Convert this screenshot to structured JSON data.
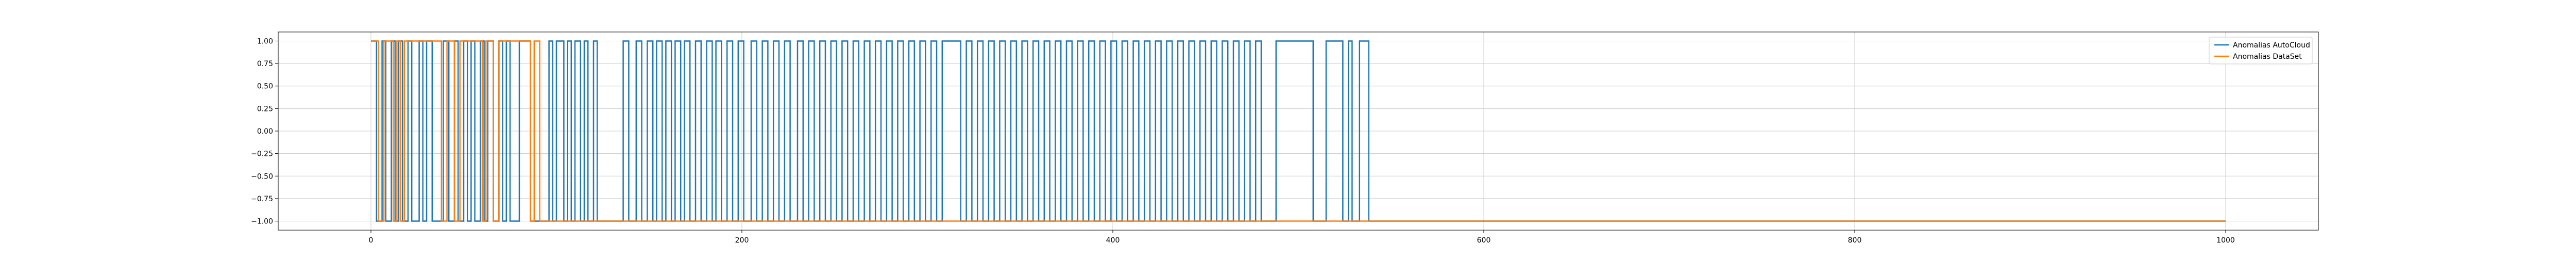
{
  "chart_data": {
    "type": "line",
    "title": "",
    "xlabel": "",
    "ylabel": "",
    "xlim": [
      -50,
      1050
    ],
    "ylim": [
      -1.1,
      1.1
    ],
    "xticks": [
      0,
      200,
      400,
      600,
      800,
      1000
    ],
    "yticks": [
      -1.0,
      -0.75,
      -0.5,
      -0.25,
      0.0,
      0.25,
      0.5,
      0.75,
      1.0
    ],
    "xtick_labels": [
      "0",
      "200",
      "400",
      "600",
      "800",
      "1000"
    ],
    "ytick_labels": [
      "−1.00",
      "−0.75",
      "−0.50",
      "−0.25",
      "0.00",
      "0.25",
      "0.50",
      "0.75",
      "1.00"
    ],
    "grid": true,
    "legend_position": "top-right",
    "series": [
      {
        "name": "Anomalias AutoCloud",
        "color": "#1f77b4",
        "x_start": 0,
        "x_end": 1000,
        "initial_value": 1,
        "final_value": -1,
        "segments": [
          [
            0,
            1
          ],
          [
            3,
            -1
          ],
          [
            6,
            1
          ],
          [
            8,
            -1
          ],
          [
            11,
            1
          ],
          [
            13,
            -1
          ],
          [
            15,
            1
          ],
          [
            17,
            -1
          ],
          [
            20,
            1
          ],
          [
            22,
            -1
          ],
          [
            26,
            1
          ],
          [
            28,
            -1
          ],
          [
            30,
            1
          ],
          [
            33,
            -1
          ],
          [
            39,
            1
          ],
          [
            42,
            -1
          ],
          [
            45,
            1
          ],
          [
            47,
            -1
          ],
          [
            50,
            1
          ],
          [
            52,
            -1
          ],
          [
            54,
            1
          ],
          [
            56,
            -1
          ],
          [
            59,
            1
          ],
          [
            61,
            -1
          ],
          [
            63,
            1
          ],
          [
            66,
            -1
          ],
          [
            69,
            1
          ],
          [
            71,
            -1
          ],
          [
            73,
            1
          ],
          [
            75,
            -1
          ],
          [
            80,
            1
          ],
          [
            86,
            -1
          ],
          [
            96,
            1
          ],
          [
            98,
            -1
          ],
          [
            100,
            1
          ],
          [
            104,
            -1
          ],
          [
            106,
            1
          ],
          [
            108,
            -1
          ],
          [
            110,
            1
          ],
          [
            113,
            -1
          ],
          [
            115,
            1
          ],
          [
            117,
            -1
          ],
          [
            120,
            1
          ],
          [
            122,
            -1
          ],
          [
            136,
            1
          ],
          [
            139,
            -1
          ],
          [
            143,
            1
          ],
          [
            146,
            -1
          ],
          [
            149,
            1
          ],
          [
            152,
            -1
          ],
          [
            154,
            1
          ],
          [
            157,
            -1
          ],
          [
            159,
            1
          ],
          [
            162,
            -1
          ],
          [
            164,
            1
          ],
          [
            167,
            -1
          ],
          [
            169,
            1
          ],
          [
            172,
            -1
          ],
          [
            175,
            1
          ],
          [
            178,
            -1
          ],
          [
            181,
            1
          ],
          [
            184,
            -1
          ],
          [
            186,
            1
          ],
          [
            189,
            -1
          ],
          [
            192,
            1
          ],
          [
            195,
            -1
          ],
          [
            198,
            1
          ],
          [
            201,
            -1
          ],
          [
            205,
            1
          ],
          [
            208,
            -1
          ],
          [
            211,
            1
          ],
          [
            214,
            -1
          ],
          [
            217,
            1
          ],
          [
            220,
            -1
          ],
          [
            223,
            1
          ],
          [
            226,
            -1
          ],
          [
            230,
            1
          ],
          [
            233,
            -1
          ],
          [
            236,
            1
          ],
          [
            239,
            -1
          ],
          [
            242,
            1
          ],
          [
            245,
            -1
          ],
          [
            248,
            1
          ],
          [
            251,
            -1
          ],
          [
            254,
            1
          ],
          [
            257,
            -1
          ],
          [
            260,
            1
          ],
          [
            263,
            -1
          ],
          [
            266,
            1
          ],
          [
            269,
            -1
          ],
          [
            272,
            1
          ],
          [
            275,
            -1
          ],
          [
            278,
            1
          ],
          [
            281,
            -1
          ],
          [
            284,
            1
          ],
          [
            287,
            -1
          ],
          [
            290,
            1
          ],
          [
            293,
            -1
          ],
          [
            296,
            1
          ],
          [
            299,
            -1
          ],
          [
            302,
            1
          ],
          [
            305,
            -1
          ],
          [
            308,
            1
          ],
          [
            318,
            -1
          ],
          [
            321,
            1
          ],
          [
            324,
            -1
          ],
          [
            327,
            1
          ],
          [
            330,
            -1
          ],
          [
            333,
            1
          ],
          [
            336,
            -1
          ],
          [
            339,
            1
          ],
          [
            342,
            -1
          ],
          [
            345,
            1
          ],
          [
            348,
            -1
          ],
          [
            351,
            1
          ],
          [
            354,
            -1
          ],
          [
            357,
            1
          ],
          [
            360,
            -1
          ],
          [
            363,
            1
          ],
          [
            366,
            -1
          ],
          [
            369,
            1
          ],
          [
            372,
            -1
          ],
          [
            375,
            1
          ],
          [
            378,
            -1
          ],
          [
            381,
            1
          ],
          [
            384,
            -1
          ],
          [
            387,
            1
          ],
          [
            390,
            -1
          ],
          [
            393,
            1
          ],
          [
            396,
            -1
          ],
          [
            399,
            1
          ],
          [
            402,
            -1
          ],
          [
            405,
            1
          ],
          [
            408,
            -1
          ],
          [
            411,
            1
          ],
          [
            414,
            -1
          ],
          [
            417,
            1
          ],
          [
            420,
            -1
          ],
          [
            423,
            1
          ],
          [
            426,
            -1
          ],
          [
            429,
            1
          ],
          [
            432,
            -1
          ],
          [
            435,
            1
          ],
          [
            438,
            -1
          ],
          [
            441,
            1
          ],
          [
            444,
            -1
          ],
          [
            447,
            1
          ],
          [
            450,
            -1
          ],
          [
            453,
            1
          ],
          [
            456,
            -1
          ],
          [
            459,
            1
          ],
          [
            462,
            -1
          ],
          [
            465,
            1
          ],
          [
            468,
            -1
          ],
          [
            471,
            1
          ],
          [
            474,
            -1
          ],
          [
            477,
            1
          ],
          [
            480,
            -1
          ],
          [
            488,
            1
          ],
          [
            508,
            -1
          ],
          [
            515,
            1
          ],
          [
            524,
            -1
          ],
          [
            527,
            1
          ],
          [
            529,
            -1
          ],
          [
            533,
            1
          ],
          [
            538,
            -1
          ]
        ]
      },
      {
        "name": "Anomalias DataSet",
        "color": "#ff7f0e",
        "x_start": 0,
        "x_end": 1000,
        "initial_value": 1,
        "final_value": -1,
        "segments": [
          [
            0,
            1
          ],
          [
            4,
            -1
          ],
          [
            7,
            1
          ],
          [
            12,
            -1
          ],
          [
            14,
            1
          ],
          [
            16,
            -1
          ],
          [
            18,
            1
          ],
          [
            38,
            -1
          ],
          [
            41,
            1
          ],
          [
            45,
            -1
          ],
          [
            48,
            1
          ],
          [
            60,
            -1
          ],
          [
            62,
            1
          ],
          [
            66,
            -1
          ],
          [
            69,
            1
          ],
          [
            86,
            -1
          ],
          [
            88,
            1
          ],
          [
            91,
            -1
          ],
          [
            1000,
            -1
          ]
        ]
      }
    ]
  }
}
